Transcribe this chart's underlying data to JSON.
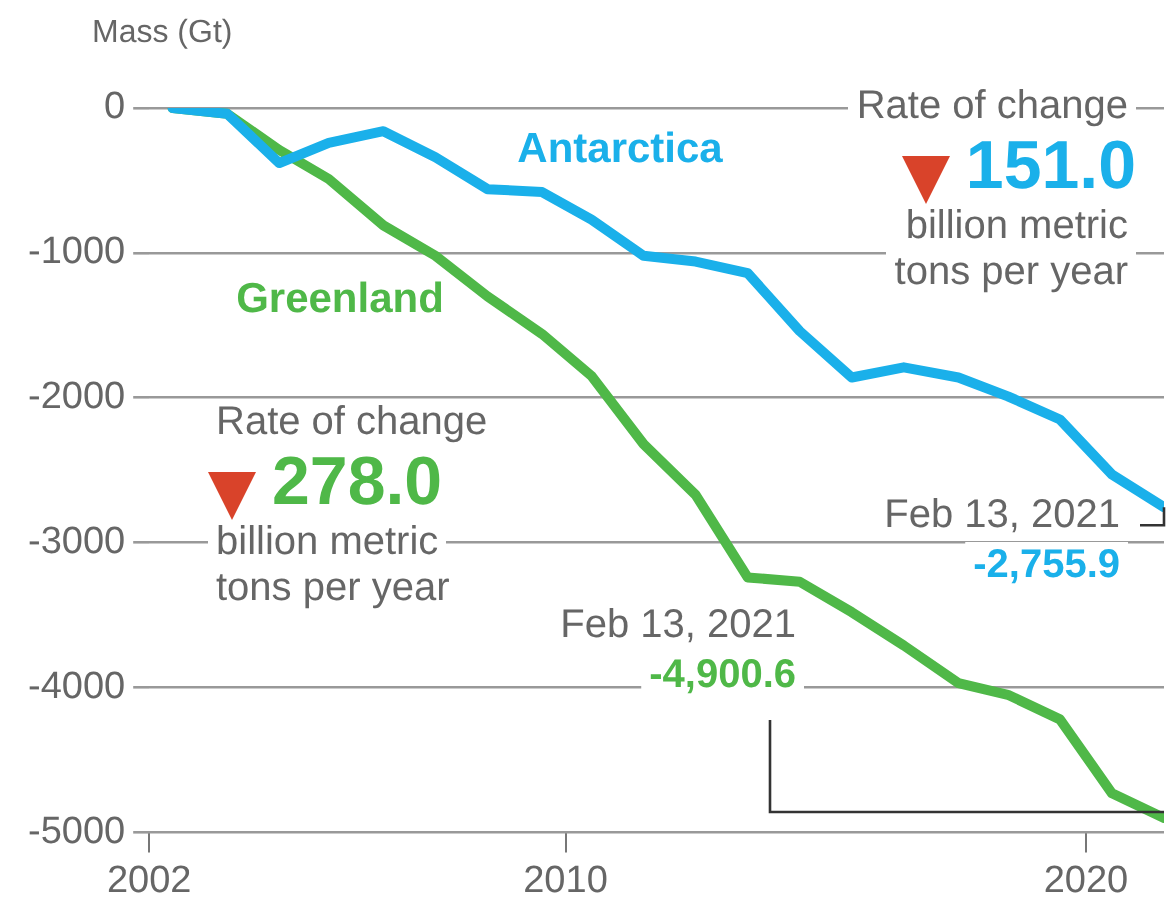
{
  "chart_data": {
    "type": "line",
    "ylabel": "Mass (Gt)",
    "xlim": [
      2002,
      2021.5
    ],
    "xticks": [
      2002,
      2010,
      2020
    ],
    "ylim": [
      -5000,
      0
    ],
    "yticks": [
      0,
      -1000,
      -2000,
      -3000,
      -4000,
      -5000
    ],
    "grid": "y",
    "legend": false,
    "marker": "none",
    "line_style": "solid",
    "series": [
      {
        "name": "Antarctica",
        "color": "#1ab0ea",
        "x": [
          2002.45,
          2003.5,
          2004.5,
          2005.45,
          2006.5,
          2007.5,
          2008.5,
          2009.55,
          2010.5,
          2011.5,
          2012.5,
          2013.5,
          2014.5,
          2015.5,
          2016.5,
          2017.55,
          2018.5,
          2019.5,
          2020.5,
          2021.5
        ],
        "values": [
          0,
          -40,
          -380,
          -240,
          -160,
          -340,
          -560,
          -580,
          -770,
          -1020,
          -1060,
          -1140,
          -1540,
          -1860,
          -1790,
          -1860,
          -1990,
          -2150,
          -2530,
          -2755.9
        ],
        "value_labels": [
          null,
          null,
          null,
          null,
          null,
          null,
          null,
          null,
          null,
          null,
          null,
          null,
          null,
          null,
          null,
          null,
          null,
          null,
          null,
          "-2,755.9"
        ]
      },
      {
        "name": "Greenland",
        "color": "#4fb848",
        "x": [
          2002.45,
          2003.5,
          2004.5,
          2005.45,
          2006.5,
          2007.5,
          2008.5,
          2009.55,
          2010.5,
          2011.5,
          2012.5,
          2013.5,
          2014.5,
          2015.5,
          2016.5,
          2017.55,
          2018.5,
          2019.5,
          2020.5,
          2021.5
        ],
        "values": [
          0,
          -40,
          -290,
          -490,
          -810,
          -1020,
          -1300,
          -1560,
          -1850,
          -2320,
          -2670,
          -3240,
          -3270,
          -3480,
          -3710,
          -3970,
          -4050,
          -4220,
          -4730,
          -4900.6
        ],
        "value_labels": [
          null,
          null,
          null,
          null,
          null,
          null,
          null,
          null,
          null,
          null,
          null,
          null,
          null,
          null,
          null,
          null,
          null,
          null,
          null,
          "-4,900.6"
        ]
      }
    ],
    "annotations": [
      "Rate of change",
      "151.0",
      "billion metric\ntons per year",
      "Rate of change",
      "278.0",
      "billion metric\ntons per year",
      "Feb 13, 2021",
      "Feb 13, 2021"
    ]
  }
}
